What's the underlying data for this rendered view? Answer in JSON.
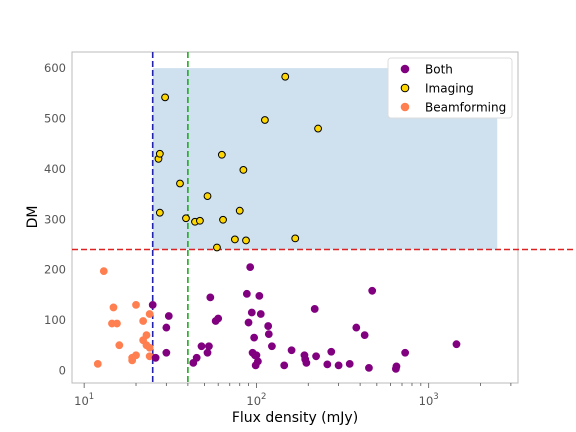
{
  "chart_data": {
    "type": "scatter",
    "title": "",
    "xlabel": "Flux density (mJy)",
    "ylabel": "DM",
    "xscale": "log",
    "xlim": [
      8.5,
      3300
    ],
    "ylim": [
      -25,
      632
    ],
    "grid": false,
    "legend_position": "top-right",
    "x_tick_labels": [
      "10^1",
      "10^2",
      "10^3"
    ],
    "x_tick_values": [
      10,
      100,
      1000
    ],
    "y_tick_values": [
      0,
      100,
      200,
      300,
      400,
      500,
      600
    ],
    "shaded_region": {
      "x_min": 25,
      "x_max": 2500,
      "y_min": 240,
      "y_max": 600,
      "color": "#cfe0ee"
    },
    "reference_lines": [
      {
        "orientation": "vertical",
        "value": 25,
        "color": "#2222aa",
        "style": "dashed"
      },
      {
        "orientation": "vertical",
        "value": 40,
        "color": "#22aa22",
        "style": "dashed"
      },
      {
        "orientation": "horizontal",
        "value": 240,
        "color": "#dd2222",
        "style": "dashed"
      }
    ],
    "series": [
      {
        "name": "Both",
        "color": "#800080",
        "edgecolor": "#800080",
        "points": [
          [
            25,
            130
          ],
          [
            26,
            25
          ],
          [
            30,
            85
          ],
          [
            30,
            35
          ],
          [
            31,
            108
          ],
          [
            43,
            15
          ],
          [
            45,
            25
          ],
          [
            48,
            48
          ],
          [
            52,
            35
          ],
          [
            53,
            48
          ],
          [
            54,
            145
          ],
          [
            58,
            98
          ],
          [
            60,
            103
          ],
          [
            88,
            152
          ],
          [
            90,
            95
          ],
          [
            92,
            205
          ],
          [
            94,
            115
          ],
          [
            95,
            35
          ],
          [
            97,
            65
          ],
          [
            98,
            30
          ],
          [
            99,
            10
          ],
          [
            100,
            30
          ],
          [
            102,
            18
          ],
          [
            104,
            148
          ],
          [
            106,
            112
          ],
          [
            117,
            88
          ],
          [
            118,
            72
          ],
          [
            123,
            48
          ],
          [
            145,
            10
          ],
          [
            160,
            40
          ],
          [
            190,
            30
          ],
          [
            192,
            22
          ],
          [
            195,
            15
          ],
          [
            218,
            122
          ],
          [
            222,
            28
          ],
          [
            258,
            12
          ],
          [
            272,
            37
          ],
          [
            300,
            10
          ],
          [
            348,
            13
          ],
          [
            380,
            85
          ],
          [
            425,
            70
          ],
          [
            450,
            5
          ],
          [
            470,
            158
          ],
          [
            645,
            3
          ],
          [
            650,
            8
          ],
          [
            730,
            35
          ],
          [
            1450,
            52
          ]
        ]
      },
      {
        "name": "Imaging",
        "color": "#ffd700",
        "edgecolor": "#000000",
        "points": [
          [
            27,
            420
          ],
          [
            27.5,
            430
          ],
          [
            27.5,
            313
          ],
          [
            29.5,
            542
          ],
          [
            36,
            371
          ],
          [
            39,
            302
          ],
          [
            44,
            295
          ],
          [
            47,
            297
          ],
          [
            52,
            346
          ],
          [
            59,
            244
          ],
          [
            63,
            428
          ],
          [
            64,
            299
          ],
          [
            75,
            260
          ],
          [
            80,
            317
          ],
          [
            84,
            398
          ],
          [
            87,
            258
          ],
          [
            112,
            497
          ],
          [
            147,
            583
          ],
          [
            168,
            262
          ],
          [
            228,
            480
          ]
        ]
      },
      {
        "name": "Beamforming",
        "color": "#ff7f50",
        "edgecolor": "#ff7f50",
        "points": [
          [
            12,
            13
          ],
          [
            13,
            197
          ],
          [
            14.5,
            93
          ],
          [
            14.8,
            125
          ],
          [
            15.5,
            93
          ],
          [
            16,
            50
          ],
          [
            19,
            20
          ],
          [
            19,
            25
          ],
          [
            20,
            130
          ],
          [
            20,
            30
          ],
          [
            22,
            60
          ],
          [
            22,
            98
          ],
          [
            23,
            50
          ],
          [
            23,
            70
          ],
          [
            24,
            45
          ],
          [
            24,
            112
          ],
          [
            24,
            28
          ]
        ]
      }
    ]
  }
}
